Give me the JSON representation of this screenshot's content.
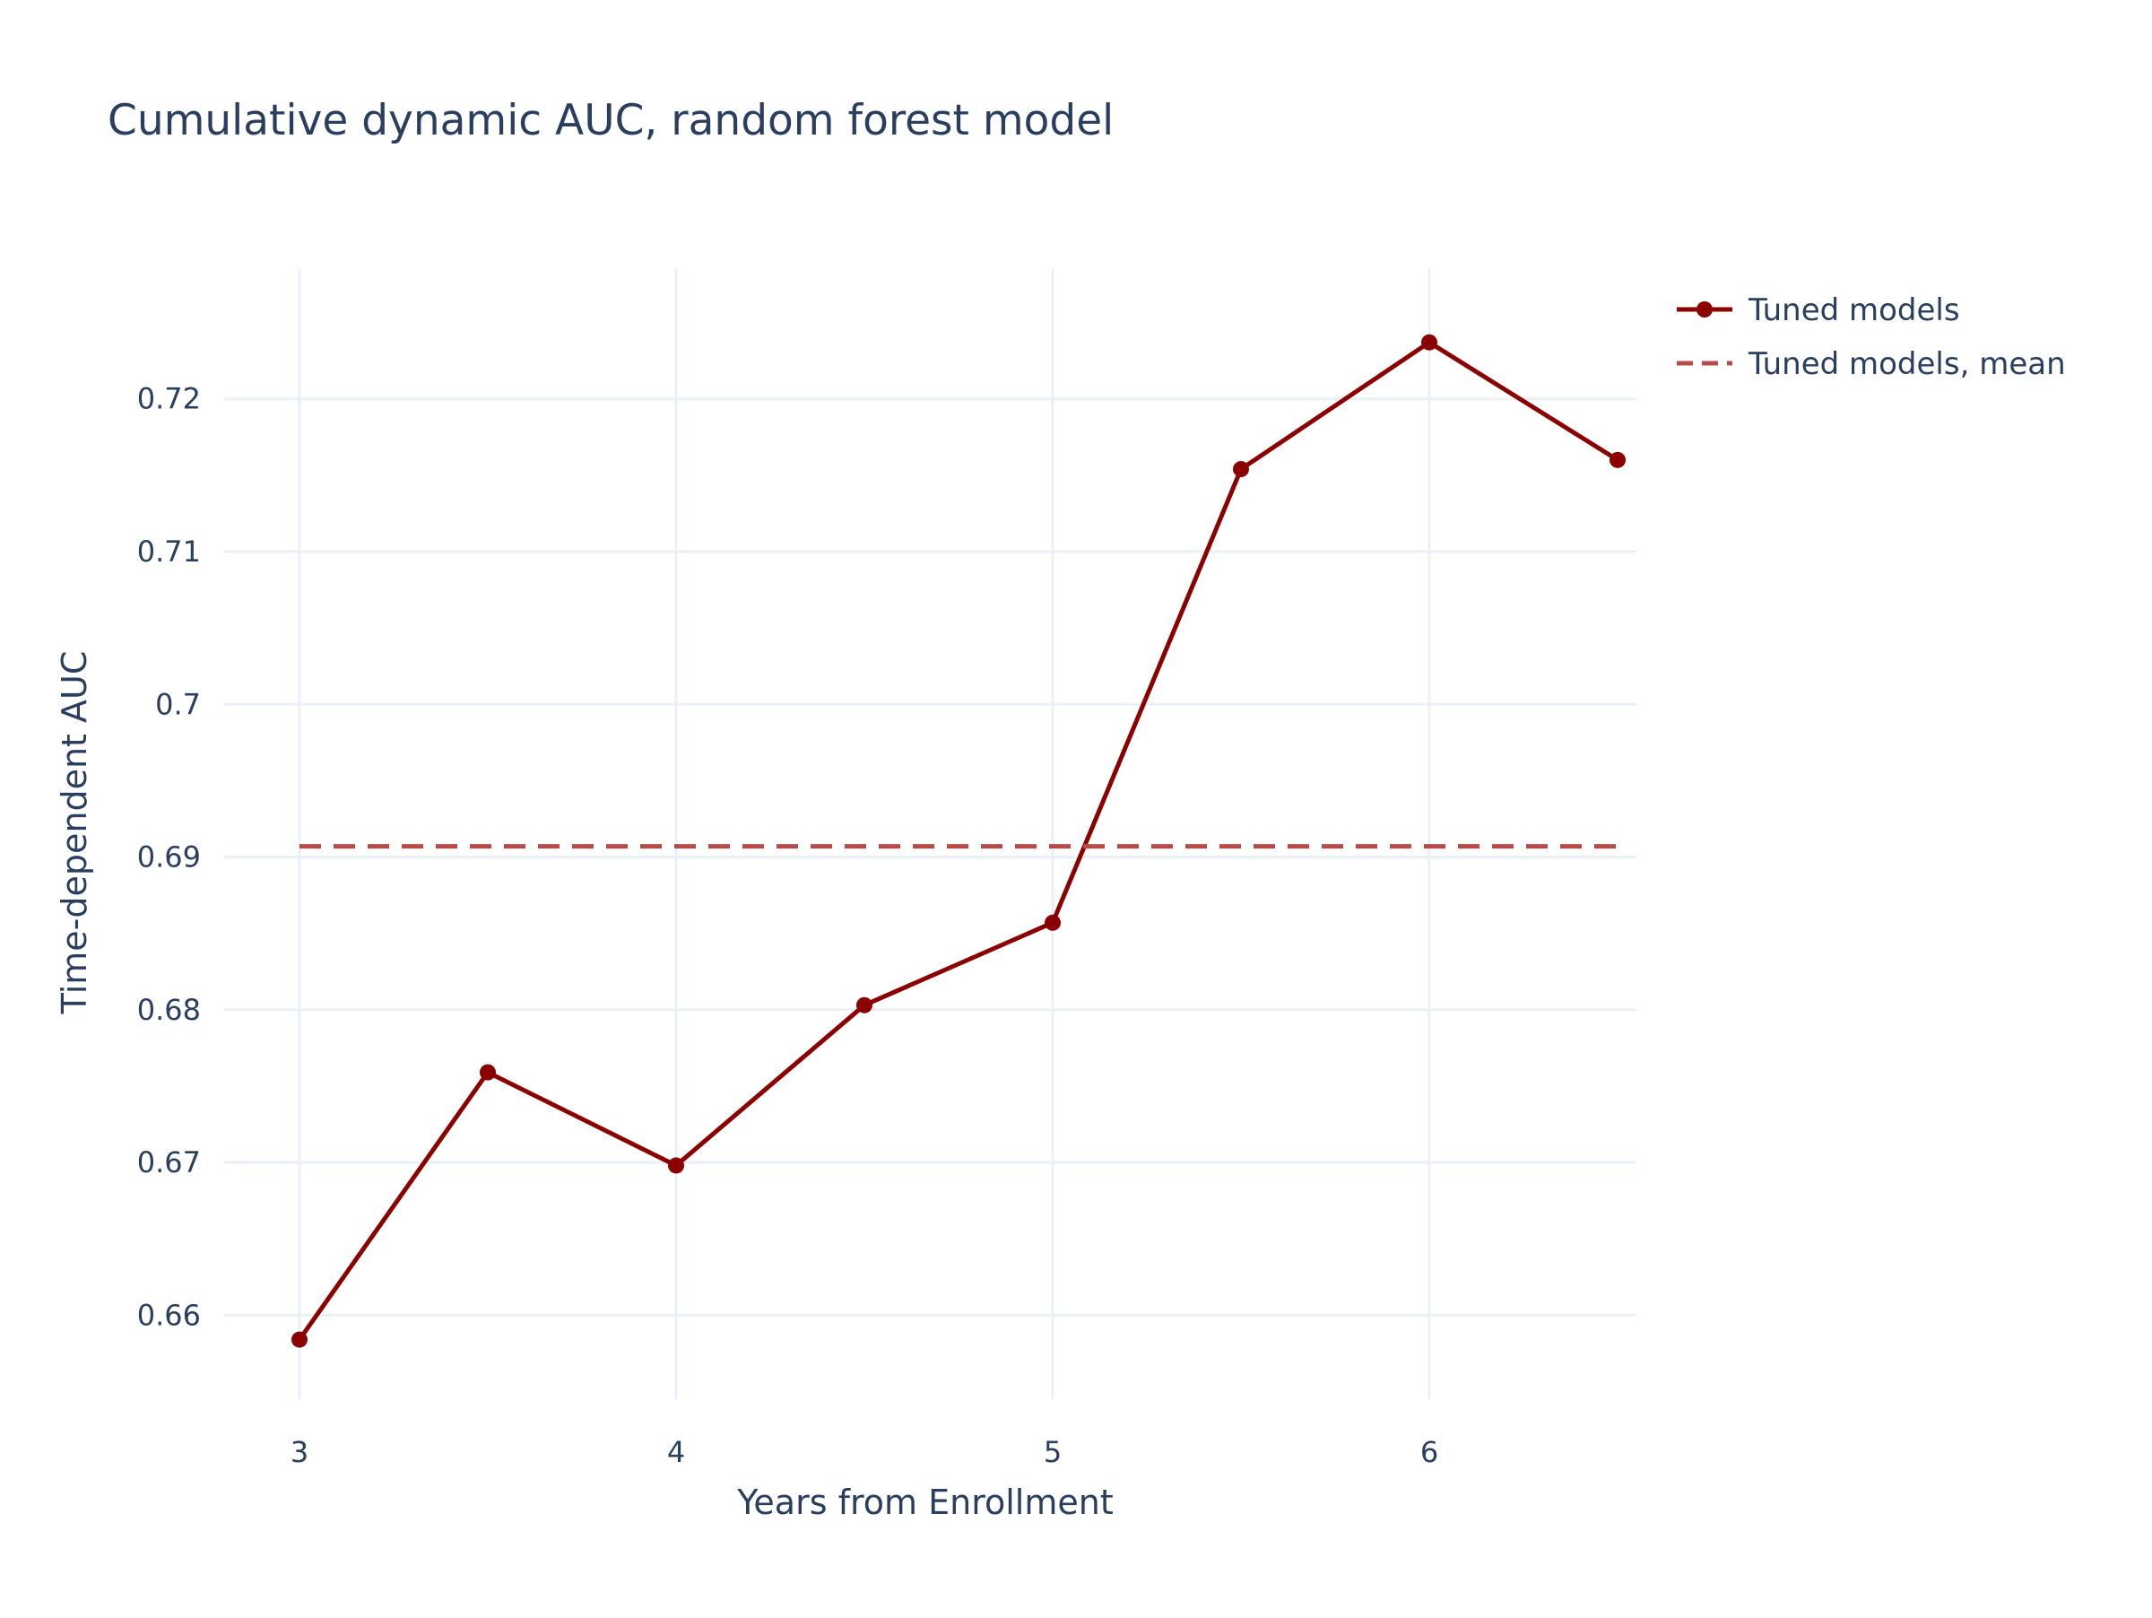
{
  "title": "Cumulative dynamic AUC, random forest model",
  "colors": {
    "series": "#8b0000",
    "mean_line": "#b84a4a",
    "grid": "#ebf0f8",
    "text": "#2a3f5f",
    "background": "#ffffff"
  },
  "chart_data": {
    "type": "line",
    "title": "Cumulative dynamic AUC, random forest model",
    "xlabel": "Years from Enrollment",
    "ylabel": "Time-dependent AUC",
    "xlim": [
      2.8,
      6.55
    ],
    "ylim": [
      0.6545,
      0.7285
    ],
    "x_ticks": [
      3,
      4,
      5,
      6
    ],
    "x_tick_labels": [
      "3",
      "4",
      "5",
      "6"
    ],
    "y_ticks": [
      0.66,
      0.67,
      0.68,
      0.69,
      0.7,
      0.71,
      0.72
    ],
    "y_tick_labels": [
      "0.66",
      "0.67",
      "0.68",
      "0.69",
      "0.7",
      "0.71",
      "0.72"
    ],
    "grid": true,
    "legend_position": "top-right outside",
    "series": [
      {
        "name": "Tuned models",
        "style": "lines+markers",
        "color": "#8b0000",
        "x": [
          3,
          3.5,
          4,
          4.5,
          5,
          5.5,
          6,
          6.5
        ],
        "y": [
          0.6584,
          0.6759,
          0.6698,
          0.6803,
          0.6857,
          0.7154,
          0.7237,
          0.716
        ]
      },
      {
        "name": "Tuned models, mean",
        "style": "dashed",
        "color": "#b84a4a",
        "x": [
          3,
          6.5
        ],
        "y": [
          0.6907,
          0.6907
        ]
      }
    ]
  }
}
